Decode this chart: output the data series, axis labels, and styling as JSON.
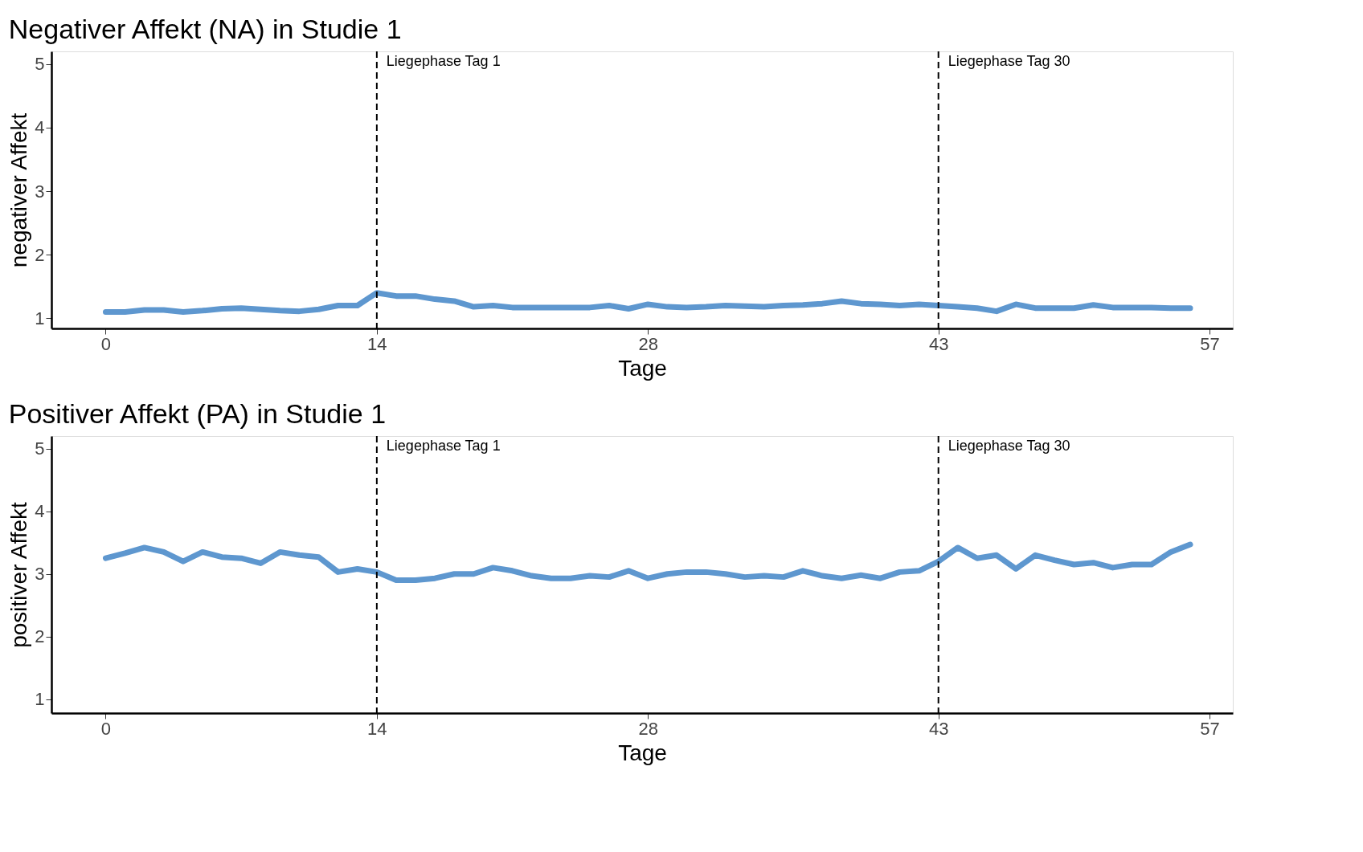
{
  "chart_data": [
    {
      "type": "line",
      "title": "Negativer Affekt (NA) in Studie 1",
      "xlabel": "Tage",
      "ylabel": "negativer Affekt",
      "x": [
        0,
        1,
        2,
        3,
        4,
        5,
        6,
        7,
        8,
        9,
        10,
        11,
        12,
        13,
        14,
        15,
        16,
        17,
        18,
        19,
        20,
        21,
        22,
        23,
        24,
        25,
        26,
        27,
        28,
        29,
        30,
        31,
        32,
        33,
        34,
        35,
        36,
        37,
        38,
        39,
        40,
        41,
        42,
        43,
        44,
        45,
        46,
        47,
        48,
        49,
        50,
        51,
        52,
        53,
        54,
        55,
        56
      ],
      "series": [
        {
          "color": "#5e97cf",
          "values": [
            1.1,
            1.1,
            1.13,
            1.13,
            1.1,
            1.12,
            1.15,
            1.16,
            1.14,
            1.12,
            1.11,
            1.14,
            1.2,
            1.2,
            1.4,
            1.35,
            1.35,
            1.3,
            1.27,
            1.18,
            1.2,
            1.17,
            1.17,
            1.17,
            1.17,
            1.17,
            1.2,
            1.15,
            1.22,
            1.18,
            1.17,
            1.18,
            1.2,
            1.19,
            1.18,
            1.2,
            1.21,
            1.23,
            1.27,
            1.23,
            1.22,
            1.2,
            1.22,
            1.2,
            1.18,
            1.16,
            1.11,
            1.22,
            1.16,
            1.16,
            1.16,
            1.21,
            1.17,
            1.17,
            1.17,
            1.16,
            1.16
          ]
        }
      ],
      "xlim": [
        -2.8,
        58.2
      ],
      "xticks": [
        0,
        14,
        28,
        43,
        57
      ],
      "ylim": [
        0.84,
        5.2
      ],
      "yticks": [
        1,
        2,
        3,
        4,
        5
      ],
      "grid": false,
      "line_style": "solid",
      "marker": "none",
      "ref_lines": [
        {
          "axis": "x",
          "value": 14,
          "label": "Liegephase Tag 1",
          "color": "#000000",
          "line_style": "dashed"
        },
        {
          "axis": "x",
          "value": 43,
          "label": "Liegephase Tag 30",
          "color": "#000000",
          "line_style": "dashed"
        }
      ]
    },
    {
      "type": "line",
      "title": "Positiver Affekt (PA) in Studie 1",
      "xlabel": "Tage",
      "ylabel": "positiver Affekt",
      "x": [
        0,
        1,
        2,
        3,
        4,
        5,
        6,
        7,
        8,
        9,
        10,
        11,
        12,
        13,
        14,
        15,
        16,
        17,
        18,
        19,
        20,
        21,
        22,
        23,
        24,
        25,
        26,
        27,
        28,
        29,
        30,
        31,
        32,
        33,
        34,
        35,
        36,
        37,
        38,
        39,
        40,
        41,
        42,
        43,
        44,
        45,
        46,
        47,
        48,
        49,
        50,
        51,
        52,
        53,
        54,
        55,
        56
      ],
      "series": [
        {
          "color": "#5e97cf",
          "values": [
            3.25,
            3.33,
            3.42,
            3.35,
            3.2,
            3.35,
            3.27,
            3.25,
            3.17,
            3.35,
            3.3,
            3.27,
            3.03,
            3.08,
            3.03,
            2.9,
            2.9,
            2.93,
            3.0,
            3.0,
            3.1,
            3.05,
            2.97,
            2.93,
            2.93,
            2.97,
            2.95,
            3.05,
            2.93,
            3.0,
            3.03,
            3.03,
            3.0,
            2.95,
            2.97,
            2.95,
            3.05,
            2.97,
            2.93,
            2.98,
            2.93,
            3.03,
            3.05,
            3.2,
            3.42,
            3.25,
            3.3,
            3.08,
            3.3,
            3.22,
            3.15,
            3.18,
            3.1,
            3.15,
            3.15,
            3.35,
            3.47
          ]
        }
      ],
      "xlim": [
        -2.8,
        58.2
      ],
      "xticks": [
        0,
        14,
        28,
        43,
        57
      ],
      "ylim": [
        0.78,
        5.2
      ],
      "yticks": [
        1,
        2,
        3,
        4,
        5
      ],
      "grid": false,
      "line_style": "solid",
      "marker": "none",
      "ref_lines": [
        {
          "axis": "x",
          "value": 14,
          "label": "Liegephase Tag 1",
          "color": "#000000",
          "line_style": "dashed"
        },
        {
          "axis": "x",
          "value": 43,
          "label": "Liegephase Tag 30",
          "color": "#000000",
          "line_style": "dashed"
        }
      ]
    }
  ]
}
